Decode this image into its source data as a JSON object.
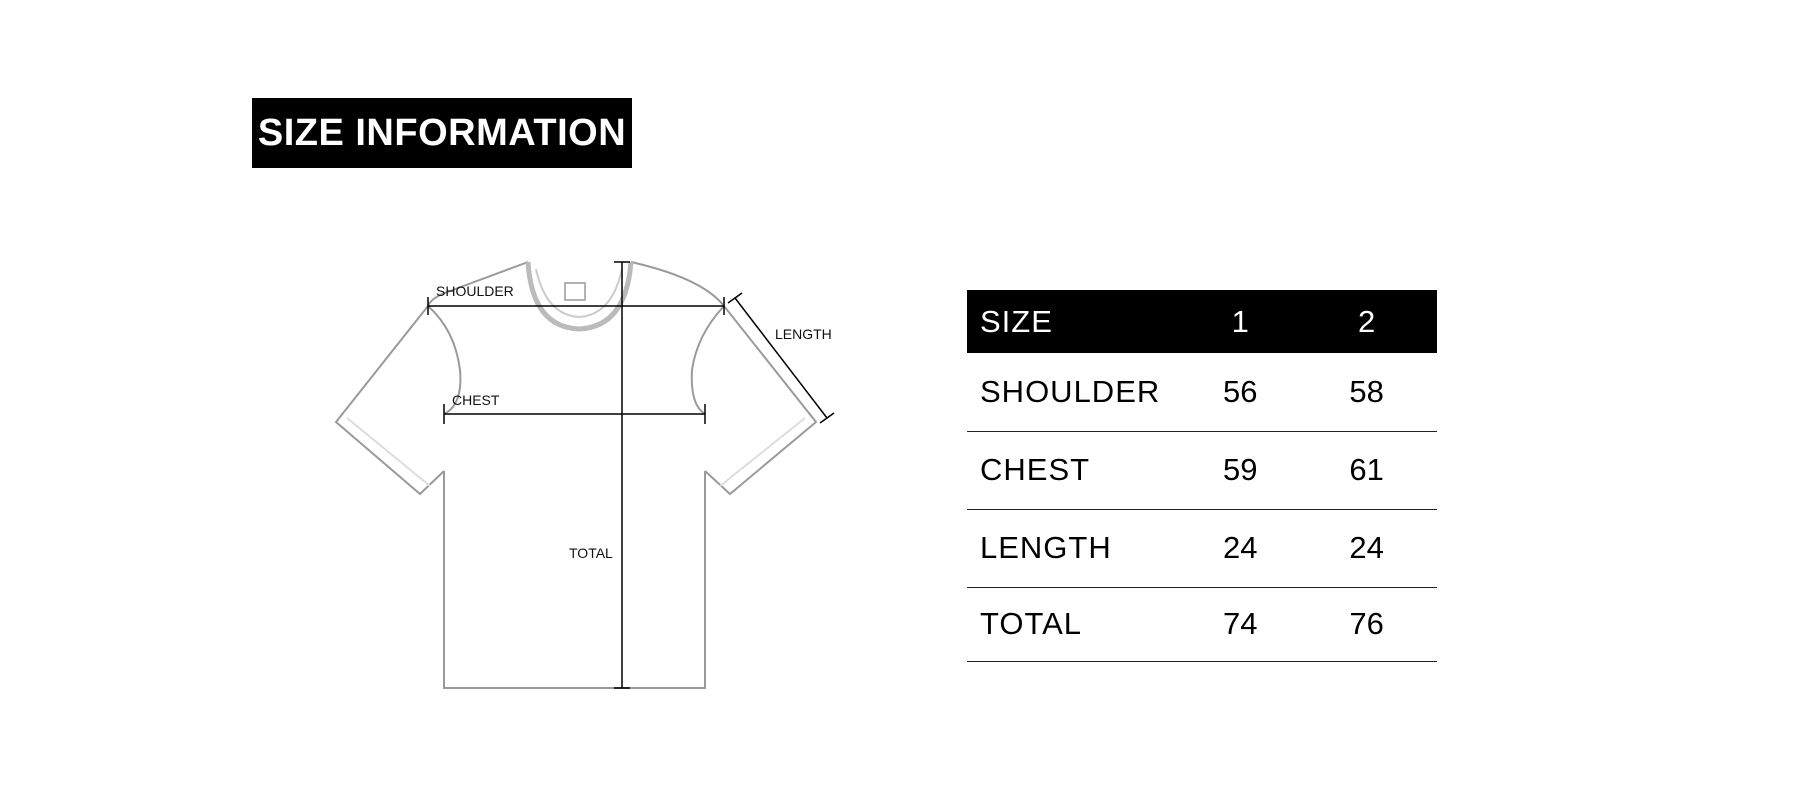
{
  "title": "SIZE INFORMATION",
  "diagram": {
    "labels": {
      "shoulder": "SHOULDER",
      "chest": "CHEST",
      "length": "LENGTH",
      "total": "TOTAL"
    }
  },
  "table": {
    "headers": [
      "SIZE",
      "1",
      "2"
    ],
    "rows": [
      {
        "label": "SHOULDER",
        "values": [
          "56",
          "58"
        ]
      },
      {
        "label": "CHEST",
        "values": [
          "59",
          "61"
        ]
      },
      {
        "label": "LENGTH",
        "values": [
          "24",
          "24"
        ]
      },
      {
        "label": "TOTAL",
        "values": [
          "74",
          "76"
        ]
      }
    ]
  }
}
